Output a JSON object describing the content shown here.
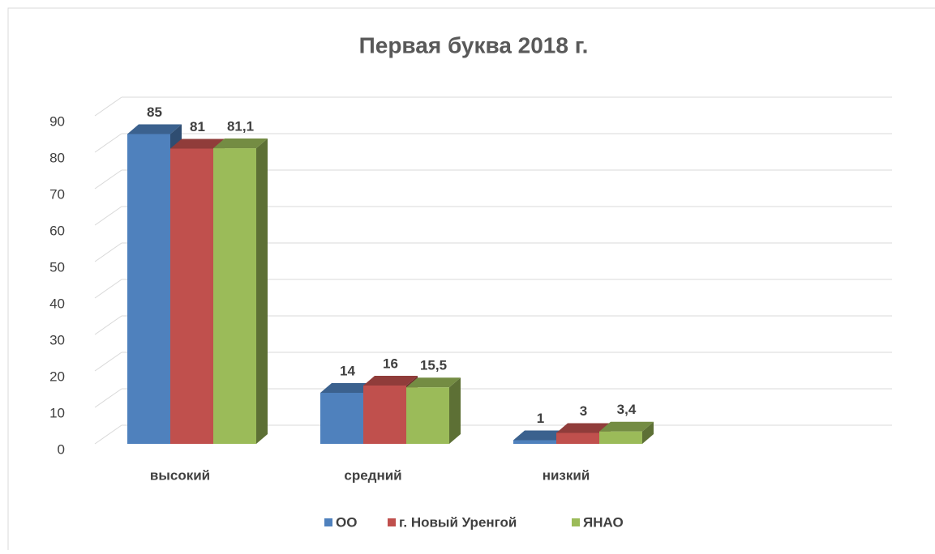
{
  "chart_data": {
    "type": "bar3d",
    "title": "Первая буква 2018 г.",
    "categories": [
      "высокий",
      "средний",
      "низкий",
      null
    ],
    "series": [
      {
        "name": "ОО",
        "color": "#4f81bd",
        "values": [
          85,
          14,
          1,
          null
        ],
        "value_labels": [
          "85",
          "14",
          "1",
          null
        ]
      },
      {
        "name": "г. Новый Уренгой",
        "color": "#c0504d",
        "values": [
          81,
          16,
          3,
          null
        ],
        "value_labels": [
          "81",
          "16",
          "3",
          null
        ]
      },
      {
        "name": "ЯНАО",
        "color": "#9bbb59",
        "values": [
          81.1,
          15.5,
          3.4,
          null
        ],
        "value_labels": [
          "81,1",
          "15,5",
          "3,4",
          null
        ]
      }
    ],
    "ylim": [
      0,
      90
    ],
    "yticks": [
      0,
      10,
      20,
      30,
      40,
      50,
      60,
      70,
      80,
      90
    ],
    "grid": true,
    "legend": "bottom"
  }
}
